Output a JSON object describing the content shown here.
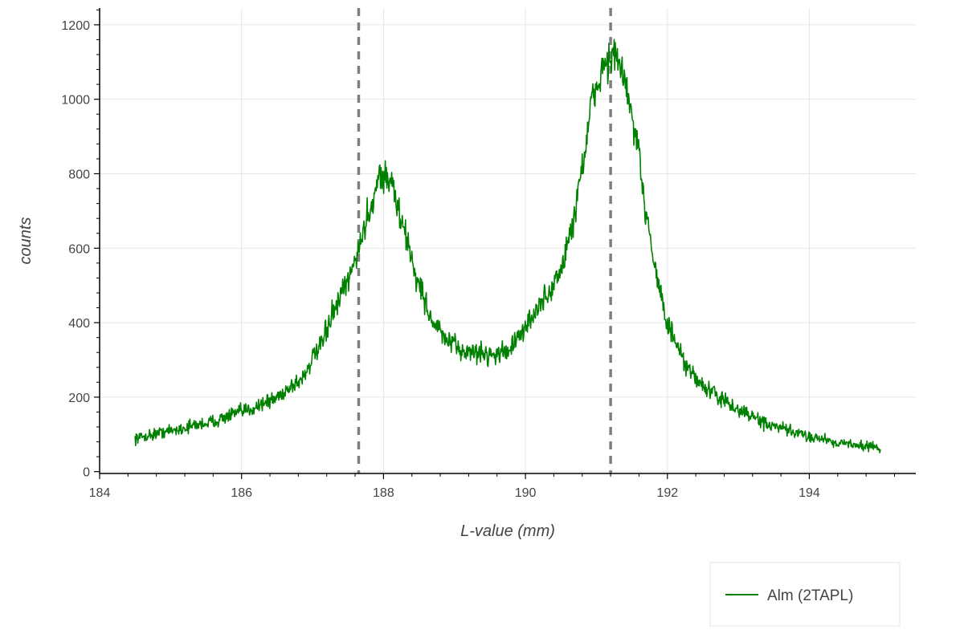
{
  "chart_data": {
    "type": "line",
    "xlabel": "L-value (mm)",
    "ylabel": "counts",
    "xlim": [
      184,
      195.5
    ],
    "ylim": [
      -5,
      1245
    ],
    "x_ticks": [
      "184",
      "186",
      "188",
      "190",
      "192",
      "194"
    ],
    "y_ticks": [
      "0",
      "200",
      "400",
      "600",
      "800",
      "1000",
      "1200"
    ],
    "x_tick_values": [
      184,
      186,
      188,
      190,
      192,
      194
    ],
    "y_tick_values": [
      0,
      200,
      400,
      600,
      800,
      1000,
      1200
    ],
    "grid": true,
    "legend_position": "bottom-right",
    "vertical_lines": [
      187.65,
      191.2
    ],
    "series": [
      {
        "name": "Alm (2TAPL)",
        "color": "#008000",
        "x": [
          184.5,
          185.0,
          185.5,
          186.0,
          186.4,
          186.8,
          187.1,
          187.3,
          187.5,
          187.65,
          187.8,
          187.95,
          188.1,
          188.3,
          188.5,
          188.7,
          188.9,
          189.1,
          189.3,
          189.5,
          189.7,
          189.9,
          190.1,
          190.3,
          190.5,
          190.65,
          190.8,
          190.95,
          191.1,
          191.25,
          191.4,
          191.55,
          191.7,
          191.85,
          192.0,
          192.3,
          192.6,
          193.0,
          193.5,
          194.0,
          194.5,
          195.0
        ],
        "y": [
          90,
          110,
          130,
          160,
          190,
          240,
          330,
          430,
          510,
          600,
          700,
          800,
          780,
          640,
          500,
          400,
          350,
          325,
          320,
          315,
          320,
          355,
          420,
          470,
          540,
          650,
          820,
          1000,
          1090,
          1120,
          1050,
          900,
          700,
          530,
          390,
          270,
          215,
          165,
          120,
          95,
          75,
          65
        ]
      }
    ]
  }
}
